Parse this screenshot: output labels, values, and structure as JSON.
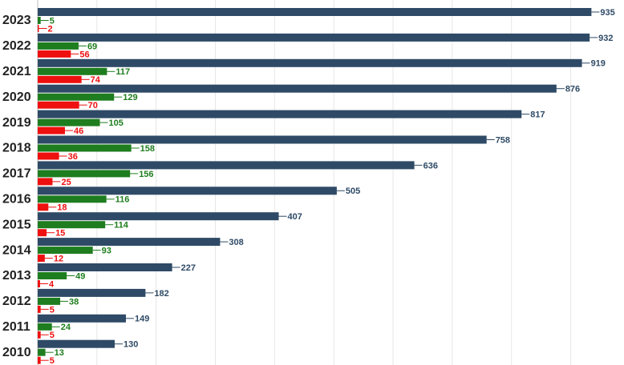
{
  "chart_data": {
    "type": "bar",
    "orientation": "horizontal",
    "categories": [
      "2023",
      "2022",
      "2021",
      "2020",
      "2019",
      "2018",
      "2017",
      "2016",
      "2015",
      "2014",
      "2013",
      "2012",
      "2011",
      "2010"
    ],
    "series": [
      {
        "color": "#2e4a66",
        "values": [
          935,
          932,
          919,
          876,
          817,
          758,
          636,
          505,
          407,
          308,
          227,
          182,
          149,
          130
        ]
      },
      {
        "color": "#1e7d1e",
        "values": [
          5,
          69,
          117,
          129,
          105,
          158,
          156,
          116,
          114,
          93,
          49,
          38,
          24,
          13
        ]
      },
      {
        "color": "#ee0f0f",
        "values": [
          2,
          56,
          74,
          70,
          46,
          36,
          25,
          18,
          15,
          12,
          4,
          5,
          5,
          5
        ]
      }
    ],
    "xlim": [
      0,
      990
    ],
    "xticks": [
      0,
      100,
      200,
      300,
      400,
      500,
      600,
      700,
      800,
      900
    ],
    "grid": true
  }
}
